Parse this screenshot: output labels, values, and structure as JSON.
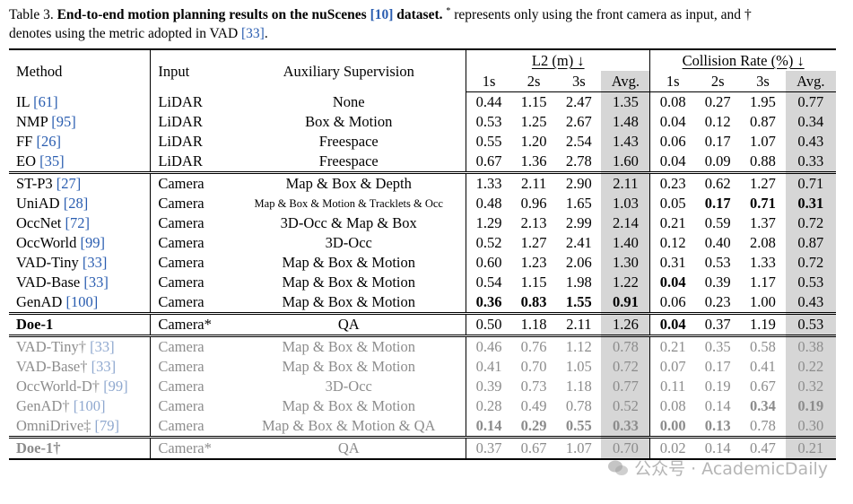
{
  "caption": {
    "label": "Table 3.",
    "title_bold": "End-to-end motion planning results on the nuScenes",
    "title_cite": "[10]",
    "title_bold_end": "dataset.",
    "star": "*",
    "text1": "represents only using the front camera as input, and",
    "dagger": "†",
    "text2": "denotes using the metric adopted in VAD",
    "text2_cite": "[33]",
    "text2_end": "."
  },
  "headers": {
    "method": "Method",
    "input": "Input",
    "aux": "Auxiliary Supervision",
    "l2": "L2 (m) ↓",
    "collision": "Collision Rate (%) ↓",
    "sub": [
      "1s",
      "2s",
      "3s",
      "Avg.",
      "1s",
      "2s",
      "3s",
      "Avg."
    ]
  },
  "rows": [
    {
      "m": "IL",
      "c": "[61]",
      "i": "LiDAR",
      "a": "None",
      "v": [
        "0.44",
        "1.15",
        "2.47",
        "1.35",
        "0.08",
        "0.27",
        "1.95",
        "0.77"
      ]
    },
    {
      "m": "NMP",
      "c": "[95]",
      "i": "LiDAR",
      "a": "Box & Motion",
      "v": [
        "0.53",
        "1.25",
        "2.67",
        "1.48",
        "0.04",
        "0.12",
        "0.87",
        "0.34"
      ]
    },
    {
      "m": "FF",
      "c": "[26]",
      "i": "LiDAR",
      "a": "Freespace",
      "v": [
        "0.55",
        "1.20",
        "2.54",
        "1.43",
        "0.06",
        "0.17",
        "1.07",
        "0.43"
      ]
    },
    {
      "m": "EO",
      "c": "[35]",
      "i": "LiDAR",
      "a": "Freespace",
      "v": [
        "0.67",
        "1.36",
        "2.78",
        "1.60",
        "0.04",
        "0.09",
        "0.88",
        "0.33"
      ]
    },
    {
      "m": "ST-P3",
      "c": "[27]",
      "i": "Camera",
      "a": "Map & Box & Depth",
      "v": [
        "1.33",
        "2.11",
        "2.90",
        "2.11",
        "0.23",
        "0.62",
        "1.27",
        "0.71"
      ]
    },
    {
      "m": "UniAD",
      "c": "[28]",
      "i": "Camera",
      "a": "Map & Box & Motion & Tracklets & Occ",
      "v": [
        "0.48",
        "0.96",
        "1.65",
        "1.03",
        "0.05",
        "0.17",
        "0.71",
        "0.31"
      ]
    },
    {
      "m": "OccNet",
      "c": "[72]",
      "i": "Camera",
      "a": "3D-Occ & Map & Box",
      "v": [
        "1.29",
        "2.13",
        "2.99",
        "2.14",
        "0.21",
        "0.59",
        "1.37",
        "0.72"
      ]
    },
    {
      "m": "OccWorld",
      "c": "[99]",
      "i": "Camera",
      "a": "3D-Occ",
      "v": [
        "0.52",
        "1.27",
        "2.41",
        "1.40",
        "0.12",
        "0.40",
        "2.08",
        "0.87"
      ]
    },
    {
      "m": "VAD-Tiny",
      "c": "[33]",
      "i": "Camera",
      "a": "Map & Box & Motion",
      "v": [
        "0.60",
        "1.23",
        "2.06",
        "1.30",
        "0.31",
        "0.53",
        "1.33",
        "0.72"
      ]
    },
    {
      "m": "VAD-Base",
      "c": "[33]",
      "i": "Camera",
      "a": "Map & Box & Motion",
      "v": [
        "0.54",
        "1.15",
        "1.98",
        "1.22",
        "0.04",
        "0.39",
        "1.17",
        "0.53"
      ]
    },
    {
      "m": "GenAD",
      "c": "[100]",
      "i": "Camera",
      "a": "Map & Box & Motion",
      "v": [
        "0.36",
        "0.83",
        "1.55",
        "0.91",
        "0.06",
        "0.23",
        "1.00",
        "0.43"
      ]
    },
    {
      "m": "Doe-1",
      "c": "",
      "i": "Camera*",
      "a": "QA",
      "v": [
        "0.50",
        "1.18",
        "2.11",
        "1.26",
        "0.04",
        "0.37",
        "1.19",
        "0.53"
      ]
    },
    {
      "m": "VAD-Tiny†",
      "c": "[33]",
      "i": "Camera",
      "a": "Map & Box & Motion",
      "v": [
        "0.46",
        "0.76",
        "1.12",
        "0.78",
        "0.21",
        "0.35",
        "0.58",
        "0.38"
      ]
    },
    {
      "m": "VAD-Base†",
      "c": "[33]",
      "i": "Camera",
      "a": "Map & Box & Motion",
      "v": [
        "0.41",
        "0.70",
        "1.05",
        "0.72",
        "0.07",
        "0.17",
        "0.41",
        "0.22"
      ]
    },
    {
      "m": "OccWorld-D†",
      "c": "[99]",
      "i": "Camera",
      "a": "3D-Occ",
      "v": [
        "0.39",
        "0.73",
        "1.18",
        "0.77",
        "0.11",
        "0.19",
        "0.67",
        "0.32"
      ]
    },
    {
      "m": "GenAD†",
      "c": "[100]",
      "i": "Camera",
      "a": "Map & Box & Motion",
      "v": [
        "0.28",
        "0.49",
        "0.78",
        "0.52",
        "0.08",
        "0.14",
        "0.34",
        "0.19"
      ]
    },
    {
      "m": "OmniDrive‡",
      "c": "[79]",
      "i": "Camera",
      "a": "Map & Box & Motion & QA",
      "v": [
        "0.14",
        "0.29",
        "0.55",
        "0.33",
        "0.00",
        "0.13",
        "0.78",
        "0.30"
      ]
    },
    {
      "m": "Doe-1†",
      "c": "",
      "i": "Camera*",
      "a": "QA",
      "v": [
        "0.37",
        "0.67",
        "1.07",
        "0.70",
        "0.02",
        "0.14",
        "0.47",
        "0.21"
      ]
    }
  ],
  "watermark": "公众号 · AcademicDaily"
}
